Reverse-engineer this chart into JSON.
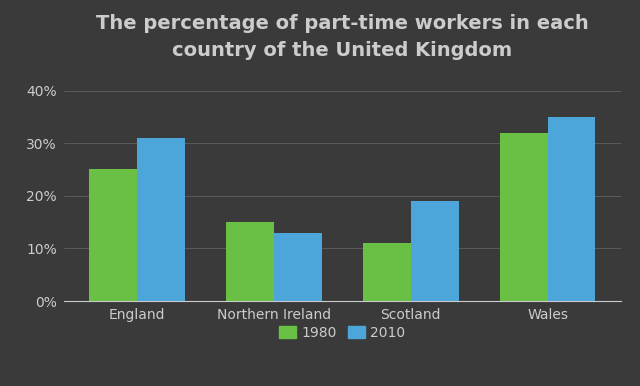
{
  "title": "The percentage of part-time workers in each\ncountry of the United Kingdom",
  "categories": [
    "England",
    "Northern Ireland",
    "Scotland",
    "Wales"
  ],
  "values_1980": [
    25,
    15,
    11,
    32
  ],
  "values_2010": [
    31,
    13,
    19,
    35
  ],
  "color_1980": "#6abf45",
  "color_2010": "#4da6d9",
  "background_color": "#3a3a3a",
  "text_color": "#cccccc",
  "grid_color": "#606060",
  "yticks": [
    0,
    10,
    20,
    30,
    40
  ],
  "ylim": [
    0,
    44
  ],
  "legend_labels": [
    "1980",
    "2010"
  ],
  "bar_width": 0.35,
  "title_fontsize": 14,
  "tick_fontsize": 10,
  "legend_fontsize": 10
}
